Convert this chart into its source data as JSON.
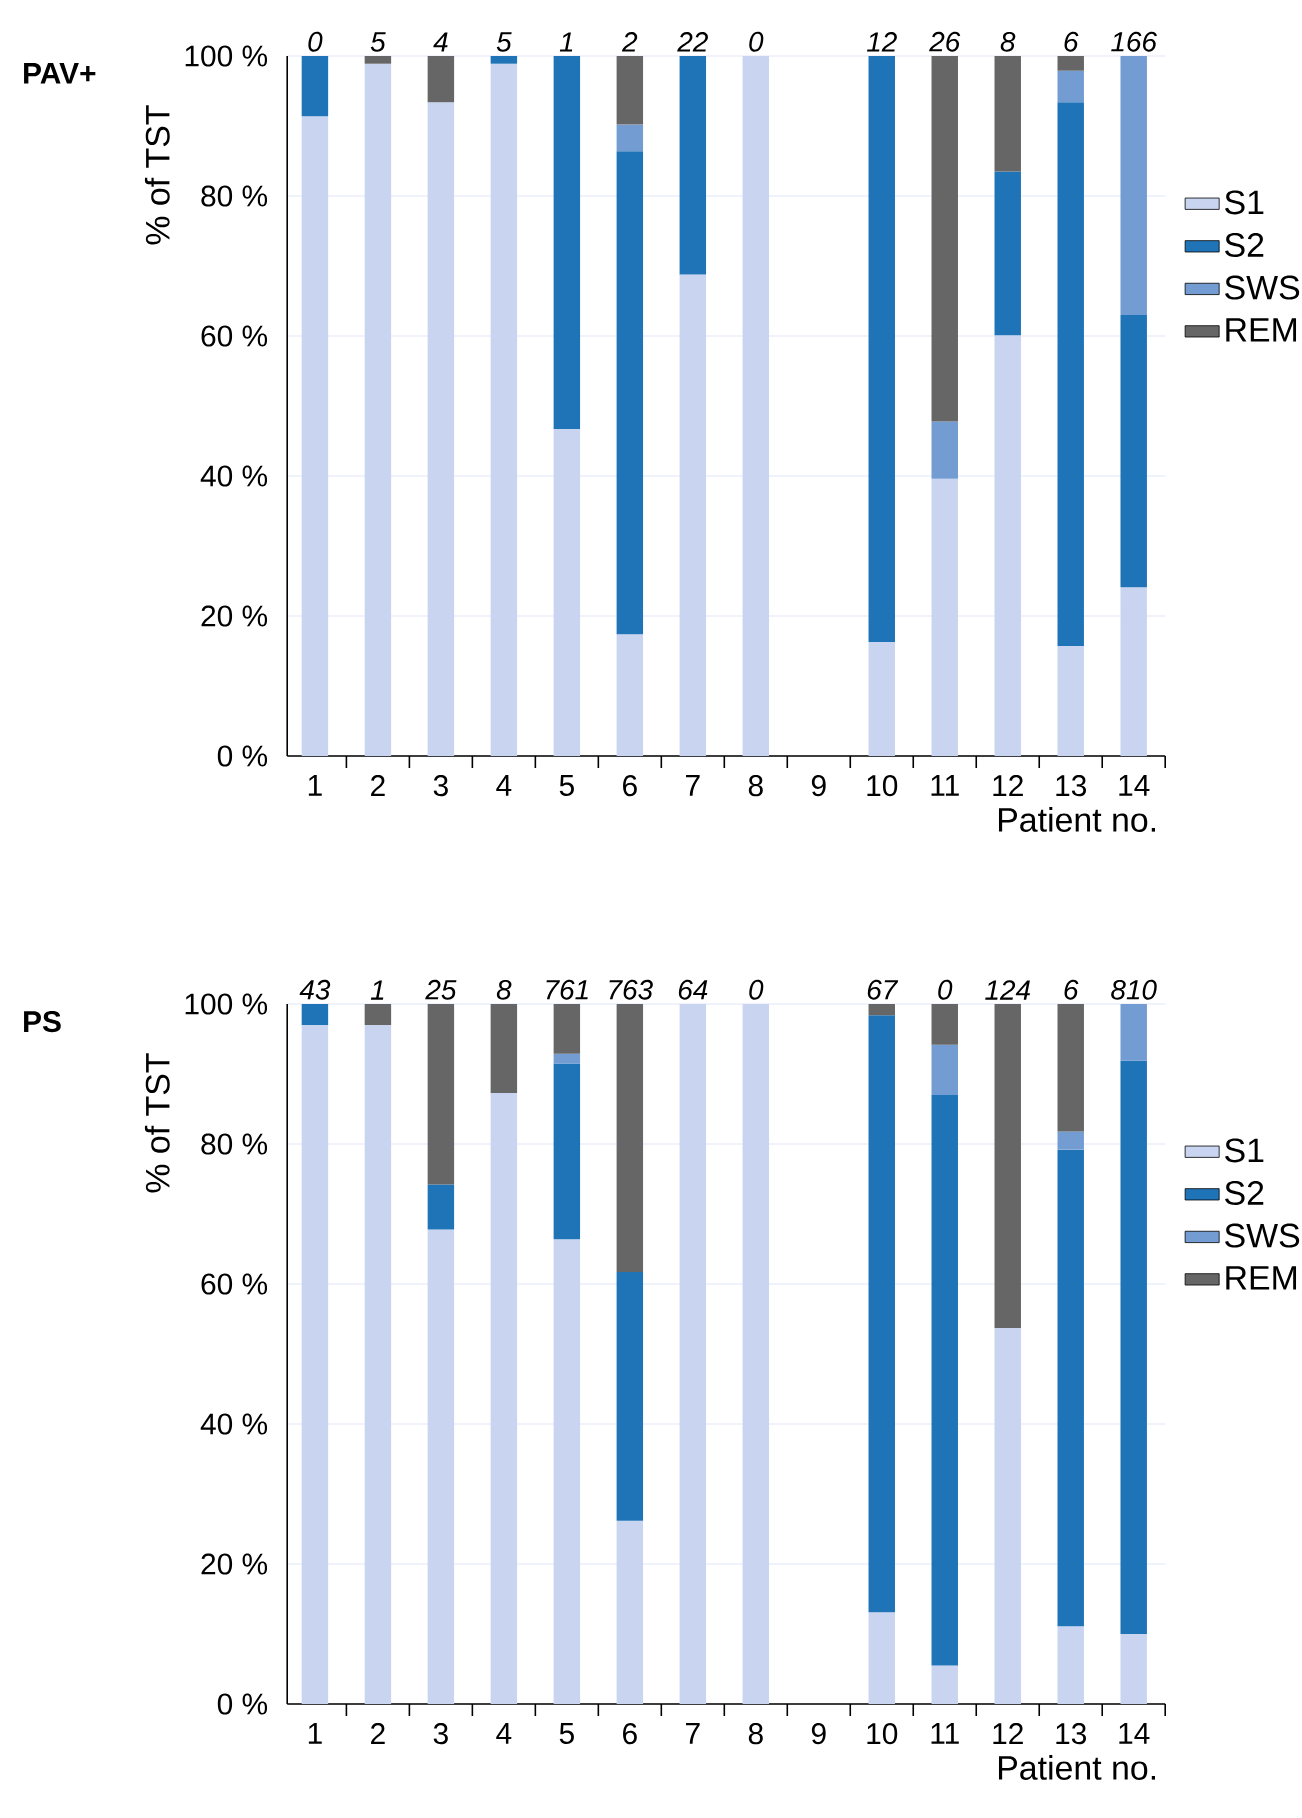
{
  "chart_data": [
    {
      "type": "bar",
      "title": "PAV+",
      "xlabel": "Patient no.",
      "ylabel": "% of TST",
      "stacked": true,
      "grid": "y",
      "legend": "right",
      "categories": [
        "1",
        "2",
        "3",
        "4",
        "5",
        "6",
        "7",
        "8",
        "9",
        "10",
        "11",
        "12",
        "13",
        "14"
      ],
      "ylim": [
        0,
        100
      ],
      "yticks": [
        {
          "value": 0,
          "label": "0 %"
        },
        {
          "value": 20,
          "label": "20 %"
        },
        {
          "value": 40,
          "label": "40 %"
        },
        {
          "value": 60,
          "label": "60 %"
        },
        {
          "value": 80,
          "label": "80 %"
        },
        {
          "value": 100,
          "label": "100 %"
        }
      ],
      "series": [
        {
          "name": "S1",
          "color": "#c9d5f0",
          "values": [
            91.4,
            98.9,
            93.4,
            98.9,
            46.7,
            17.4,
            68.8,
            100,
            null,
            16.3,
            39.6,
            60.1,
            15.7,
            24.1
          ]
        },
        {
          "name": "S2",
          "color": "#1f74b8",
          "values": [
            8.6,
            null,
            null,
            1.1,
            53.3,
            69.0,
            31.2,
            null,
            null,
            83.7,
            null,
            23.4,
            77.7,
            38.9
          ]
        },
        {
          "name": "SWS",
          "color": "#739cd2",
          "values": [
            null,
            null,
            null,
            null,
            null,
            3.8,
            null,
            null,
            null,
            null,
            8.2,
            null,
            4.5,
            37.0
          ]
        },
        {
          "name": "REM",
          "color": "#666666",
          "values": [
            null,
            1.1,
            6.6,
            null,
            null,
            9.8,
            null,
            null,
            null,
            null,
            52.2,
            16.5,
            2.1,
            null
          ]
        }
      ],
      "annotations": [
        {
          "text": "0",
          "x": "1",
          "y": 100
        },
        {
          "text": "5",
          "x": "2",
          "y": 100
        },
        {
          "text": "4",
          "x": "3",
          "y": 100
        },
        {
          "text": "5",
          "x": "4",
          "y": 100
        },
        {
          "text": "1",
          "x": "5",
          "y": 100
        },
        {
          "text": "2",
          "x": "6",
          "y": 100
        },
        {
          "text": "22",
          "x": "7",
          "y": 100
        },
        {
          "text": "0",
          "x": "8",
          "y": 100
        },
        {
          "text": "12",
          "x": "10",
          "y": 100
        },
        {
          "text": "26",
          "x": "11",
          "y": 100
        },
        {
          "text": "8",
          "x": "12",
          "y": 100
        },
        {
          "text": "6",
          "x": "13",
          "y": 100
        },
        {
          "text": "166",
          "x": "14",
          "y": 100
        }
      ]
    },
    {
      "type": "bar",
      "title": "PS",
      "xlabel": "Patient no.",
      "ylabel": "% of TST",
      "stacked": true,
      "grid": "y",
      "legend": "right",
      "categories": [
        "1",
        "2",
        "3",
        "4",
        "5",
        "6",
        "7",
        "8",
        "9",
        "10",
        "11",
        "12",
        "13",
        "14"
      ],
      "ylim": [
        0,
        100
      ],
      "yticks": [
        {
          "value": 0,
          "label": "0 %"
        },
        {
          "value": 20,
          "label": "20 %"
        },
        {
          "value": 40,
          "label": "40 %"
        },
        {
          "value": 60,
          "label": "60 %"
        },
        {
          "value": 80,
          "label": "80 %"
        },
        {
          "value": 100,
          "label": "100 %"
        }
      ],
      "series": [
        {
          "name": "S1",
          "color": "#c9d5f0",
          "values": [
            97.0,
            97.0,
            67.8,
            87.3,
            66.4,
            26.2,
            100,
            100,
            null,
            13.1,
            5.5,
            53.7,
            11.1,
            10.0
          ]
        },
        {
          "name": "S2",
          "color": "#1f74b8",
          "values": [
            3.0,
            null,
            6.4,
            null,
            25.1,
            35.5,
            null,
            null,
            null,
            85.3,
            81.5,
            null,
            68.1,
            81.9
          ]
        },
        {
          "name": "SWS",
          "color": "#739cd2",
          "values": [
            null,
            null,
            null,
            null,
            1.4,
            null,
            null,
            null,
            null,
            null,
            7.2,
            null,
            2.6,
            8.1
          ]
        },
        {
          "name": "REM",
          "color": "#666666",
          "values": [
            null,
            3.0,
            25.8,
            12.7,
            7.1,
            38.3,
            null,
            null,
            null,
            1.6,
            5.8,
            46.3,
            18.2,
            null
          ]
        }
      ],
      "annotations": [
        {
          "text": "43",
          "x": "1",
          "y": 100
        },
        {
          "text": "1",
          "x": "2",
          "y": 100
        },
        {
          "text": "25",
          "x": "3",
          "y": 100
        },
        {
          "text": "8",
          "x": "4",
          "y": 100
        },
        {
          "text": "761",
          "x": "5",
          "y": 100
        },
        {
          "text": "763",
          "x": "6",
          "y": 100
        },
        {
          "text": "64",
          "x": "7",
          "y": 100
        },
        {
          "text": "0",
          "x": "8",
          "y": 100
        },
        {
          "text": "67",
          "x": "10",
          "y": 100
        },
        {
          "text": "0",
          "x": "11",
          "y": 100
        },
        {
          "text": "124",
          "x": "12",
          "y": 100
        },
        {
          "text": "6",
          "x": "13",
          "y": 100
        },
        {
          "text": "810",
          "x": "14",
          "y": 100
        }
      ]
    }
  ]
}
